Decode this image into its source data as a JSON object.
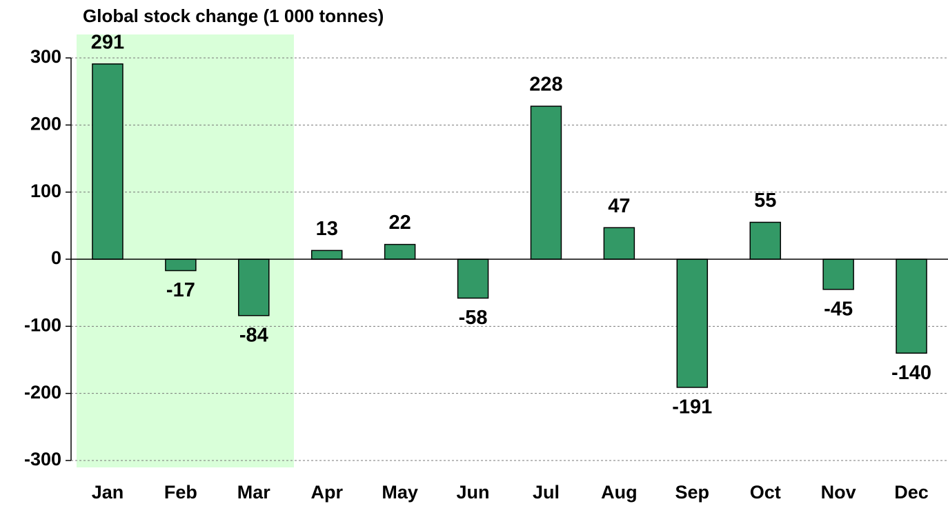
{
  "chart_data": {
    "type": "bar",
    "title": "Global stock change (1 000 tonnes)",
    "categories": [
      "Jan",
      "Feb",
      "Mar",
      "Apr",
      "May",
      "Jun",
      "Jul",
      "Aug",
      "Sep",
      "Oct",
      "Nov",
      "Dec"
    ],
    "values": [
      291,
      -17,
      -84,
      13,
      22,
      -58,
      228,
      47,
      -191,
      55,
      -45,
      -140
    ],
    "color": "#339966",
    "ylim": [
      -300,
      300
    ],
    "yticks": [
      -300,
      -200,
      -100,
      0,
      100,
      200,
      300
    ],
    "grid": true
  }
}
